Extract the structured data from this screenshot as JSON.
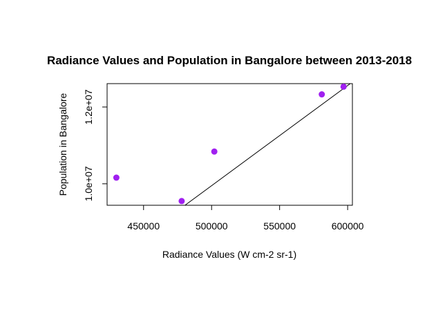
{
  "chart_data": {
    "type": "scatter",
    "title": "Radiance Values and Population in Bangalore between 2013-2018",
    "xlabel": "Radiance Values (W cm-2 sr-1)",
    "ylabel": "Population in Bangalore",
    "xlim": [
      423200,
      603500
    ],
    "ylim": [
      9440000,
      12610000
    ],
    "x_ticks": [
      450000,
      500000,
      550000,
      600000
    ],
    "x_tick_labels": [
      "450000",
      "500000",
      "550000",
      "600000"
    ],
    "y_ticks": [
      10000000,
      12000000
    ],
    "y_tick_labels": [
      "1.0e+07",
      "1.2e+07"
    ],
    "points": [
      {
        "x": 430000,
        "y": 10160000
      },
      {
        "x": 478000,
        "y": 9550000
      },
      {
        "x": 502000,
        "y": 10840000
      },
      {
        "x": 581000,
        "y": 12330000
      },
      {
        "x": 597000,
        "y": 12530000
      }
    ],
    "trend_line": {
      "intercept": -3100000,
      "slope": 26.1
    },
    "grid": false,
    "legend": "none",
    "point_color": "#a020f0",
    "line_color": "#000000"
  }
}
